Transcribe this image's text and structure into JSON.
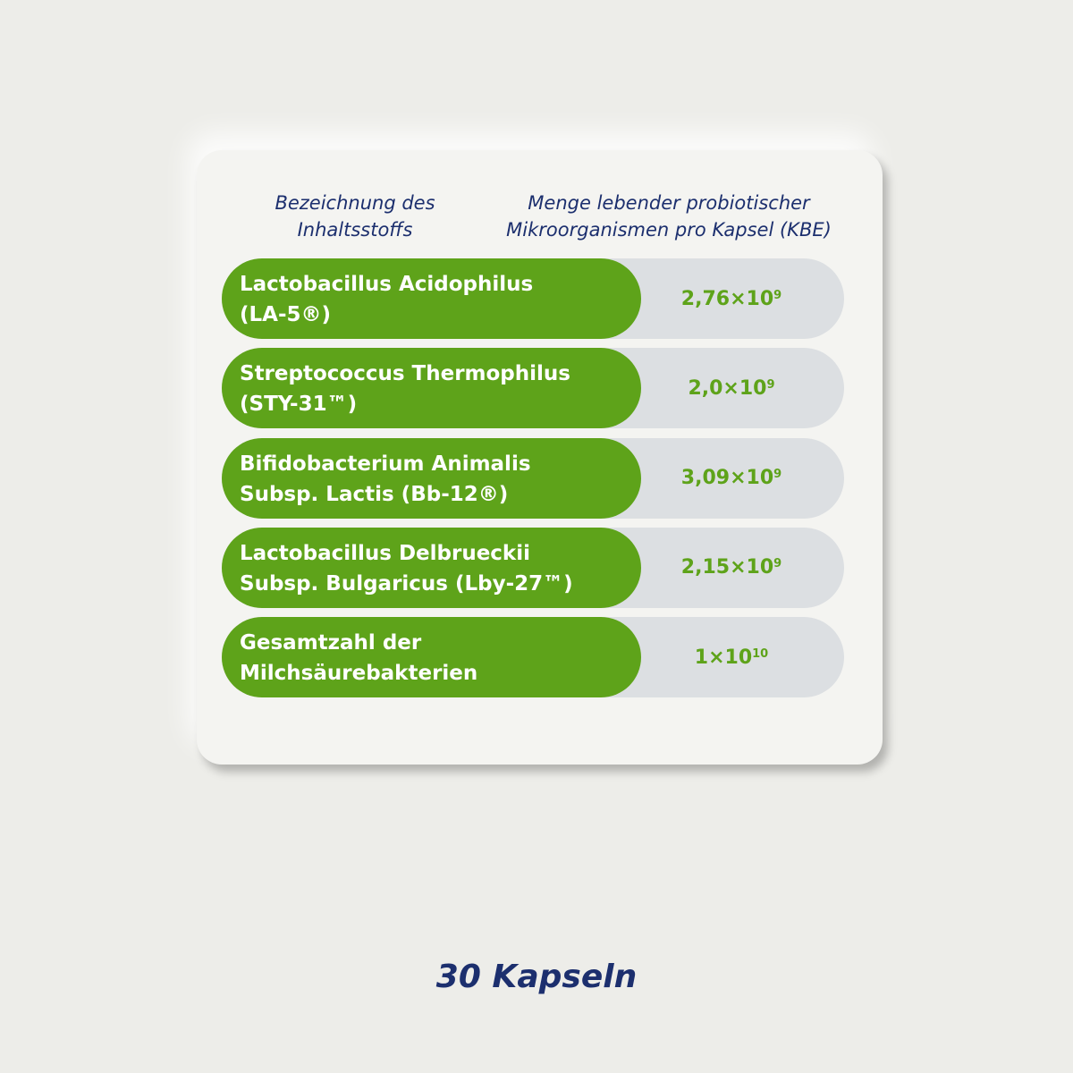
{
  "header": {
    "name_column": [
      "Bezeichnung des",
      "Inhaltsstoffs"
    ],
    "amount_column": [
      "Menge lebender probiotischer",
      "Mikroorganismen pro Kapsel (KBE)"
    ]
  },
  "table": {
    "rows": [
      {
        "name": [
          "Lactobacillus Acidophilus",
          "(LA-5®)"
        ],
        "amount": {
          "base": "2,76×10",
          "exponent": "9"
        }
      },
      {
        "name": [
          "Streptococcus Thermophilus",
          "(STY-31™)"
        ],
        "amount": {
          "base": "2,0×10",
          "exponent": "9"
        }
      },
      {
        "name": [
          "Bifidobacterium Animalis",
          "Subsp. Lactis (Bb-12®)"
        ],
        "amount": {
          "base": "3,09×10",
          "exponent": "9"
        }
      },
      {
        "name": [
          "Lactobacillus Delbrueckii",
          "Subsp. Bulgaricus (Lby-27™)"
        ],
        "amount": {
          "base": "2,15×10",
          "exponent": "9"
        }
      },
      {
        "name": [
          "Gesamtzahl der",
          "Milchsäurebakterien"
        ],
        "amount": {
          "base": "1×10",
          "exponent": "10"
        }
      }
    ]
  },
  "footer": {
    "count": "30 Kapseln"
  }
}
